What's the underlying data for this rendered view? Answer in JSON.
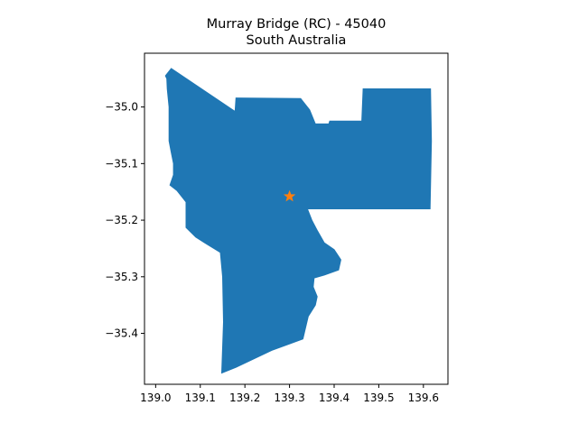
{
  "figure": {
    "title_line1": "Murray Bridge (RC) - 45040",
    "title_line2": "South Australia"
  },
  "map": {
    "x_ticks": [
      {
        "value": 139.0,
        "label": "139.0"
      },
      {
        "value": 139.1,
        "label": "139.1"
      },
      {
        "value": 139.2,
        "label": "139.2"
      },
      {
        "value": 139.3,
        "label": "139.3"
      },
      {
        "value": 139.4,
        "label": "139.4"
      },
      {
        "value": 139.5,
        "label": "139.5"
      },
      {
        "value": 139.6,
        "label": "139.6"
      }
    ],
    "y_ticks": [
      {
        "value": -35.0,
        "label": "−35.0"
      },
      {
        "value": -35.1,
        "label": "−35.1"
      },
      {
        "value": -35.2,
        "label": "−35.2"
      },
      {
        "value": -35.3,
        "label": "−35.3"
      },
      {
        "value": -35.4,
        "label": "−35.4"
      }
    ],
    "xlim": [
      138.975,
      139.655
    ],
    "ylim": [
      -35.49,
      -34.905
    ],
    "region_color": "#1f77b4",
    "marker_color": "#ff7f0e",
    "marker": {
      "lon": 139.3,
      "lat": -35.158
    },
    "region_outline": [
      [
        139.035,
        -34.932
      ],
      [
        139.178,
        -35.008
      ],
      [
        139.18,
        -34.984
      ],
      [
        139.325,
        -34.985
      ],
      [
        139.345,
        -35.005
      ],
      [
        139.358,
        -35.03
      ],
      [
        139.388,
        -35.03
      ],
      [
        139.39,
        -35.025
      ],
      [
        139.462,
        -35.025
      ],
      [
        139.465,
        -34.968
      ],
      [
        139.616,
        -34.968
      ],
      [
        139.618,
        -35.06
      ],
      [
        139.615,
        -35.18
      ],
      [
        139.34,
        -35.18
      ],
      [
        139.35,
        -35.2
      ],
      [
        139.362,
        -35.218
      ],
      [
        139.378,
        -35.24
      ],
      [
        139.4,
        -35.252
      ],
      [
        139.415,
        -35.27
      ],
      [
        139.41,
        -35.288
      ],
      [
        139.378,
        -35.297
      ],
      [
        139.355,
        -35.302
      ],
      [
        139.353,
        -35.318
      ],
      [
        139.362,
        -35.335
      ],
      [
        139.358,
        -35.35
      ],
      [
        139.342,
        -35.37
      ],
      [
        139.33,
        -35.41
      ],
      [
        139.26,
        -35.43
      ],
      [
        139.18,
        -35.46
      ],
      [
        139.148,
        -35.47
      ],
      [
        139.152,
        -35.38
      ],
      [
        139.15,
        -35.3
      ],
      [
        139.145,
        -35.257
      ],
      [
        139.11,
        -35.24
      ],
      [
        139.09,
        -35.23
      ],
      [
        139.068,
        -35.213
      ],
      [
        139.068,
        -35.168
      ],
      [
        139.048,
        -35.148
      ],
      [
        139.032,
        -35.138
      ],
      [
        139.04,
        -35.12
      ],
      [
        139.04,
        -35.1
      ],
      [
        139.035,
        -35.08
      ],
      [
        139.03,
        -35.06
      ],
      [
        139.03,
        -35.03
      ],
      [
        139.03,
        -35.0
      ],
      [
        139.026,
        -34.968
      ],
      [
        139.025,
        -34.95
      ],
      [
        139.022,
        -34.945
      ]
    ]
  }
}
